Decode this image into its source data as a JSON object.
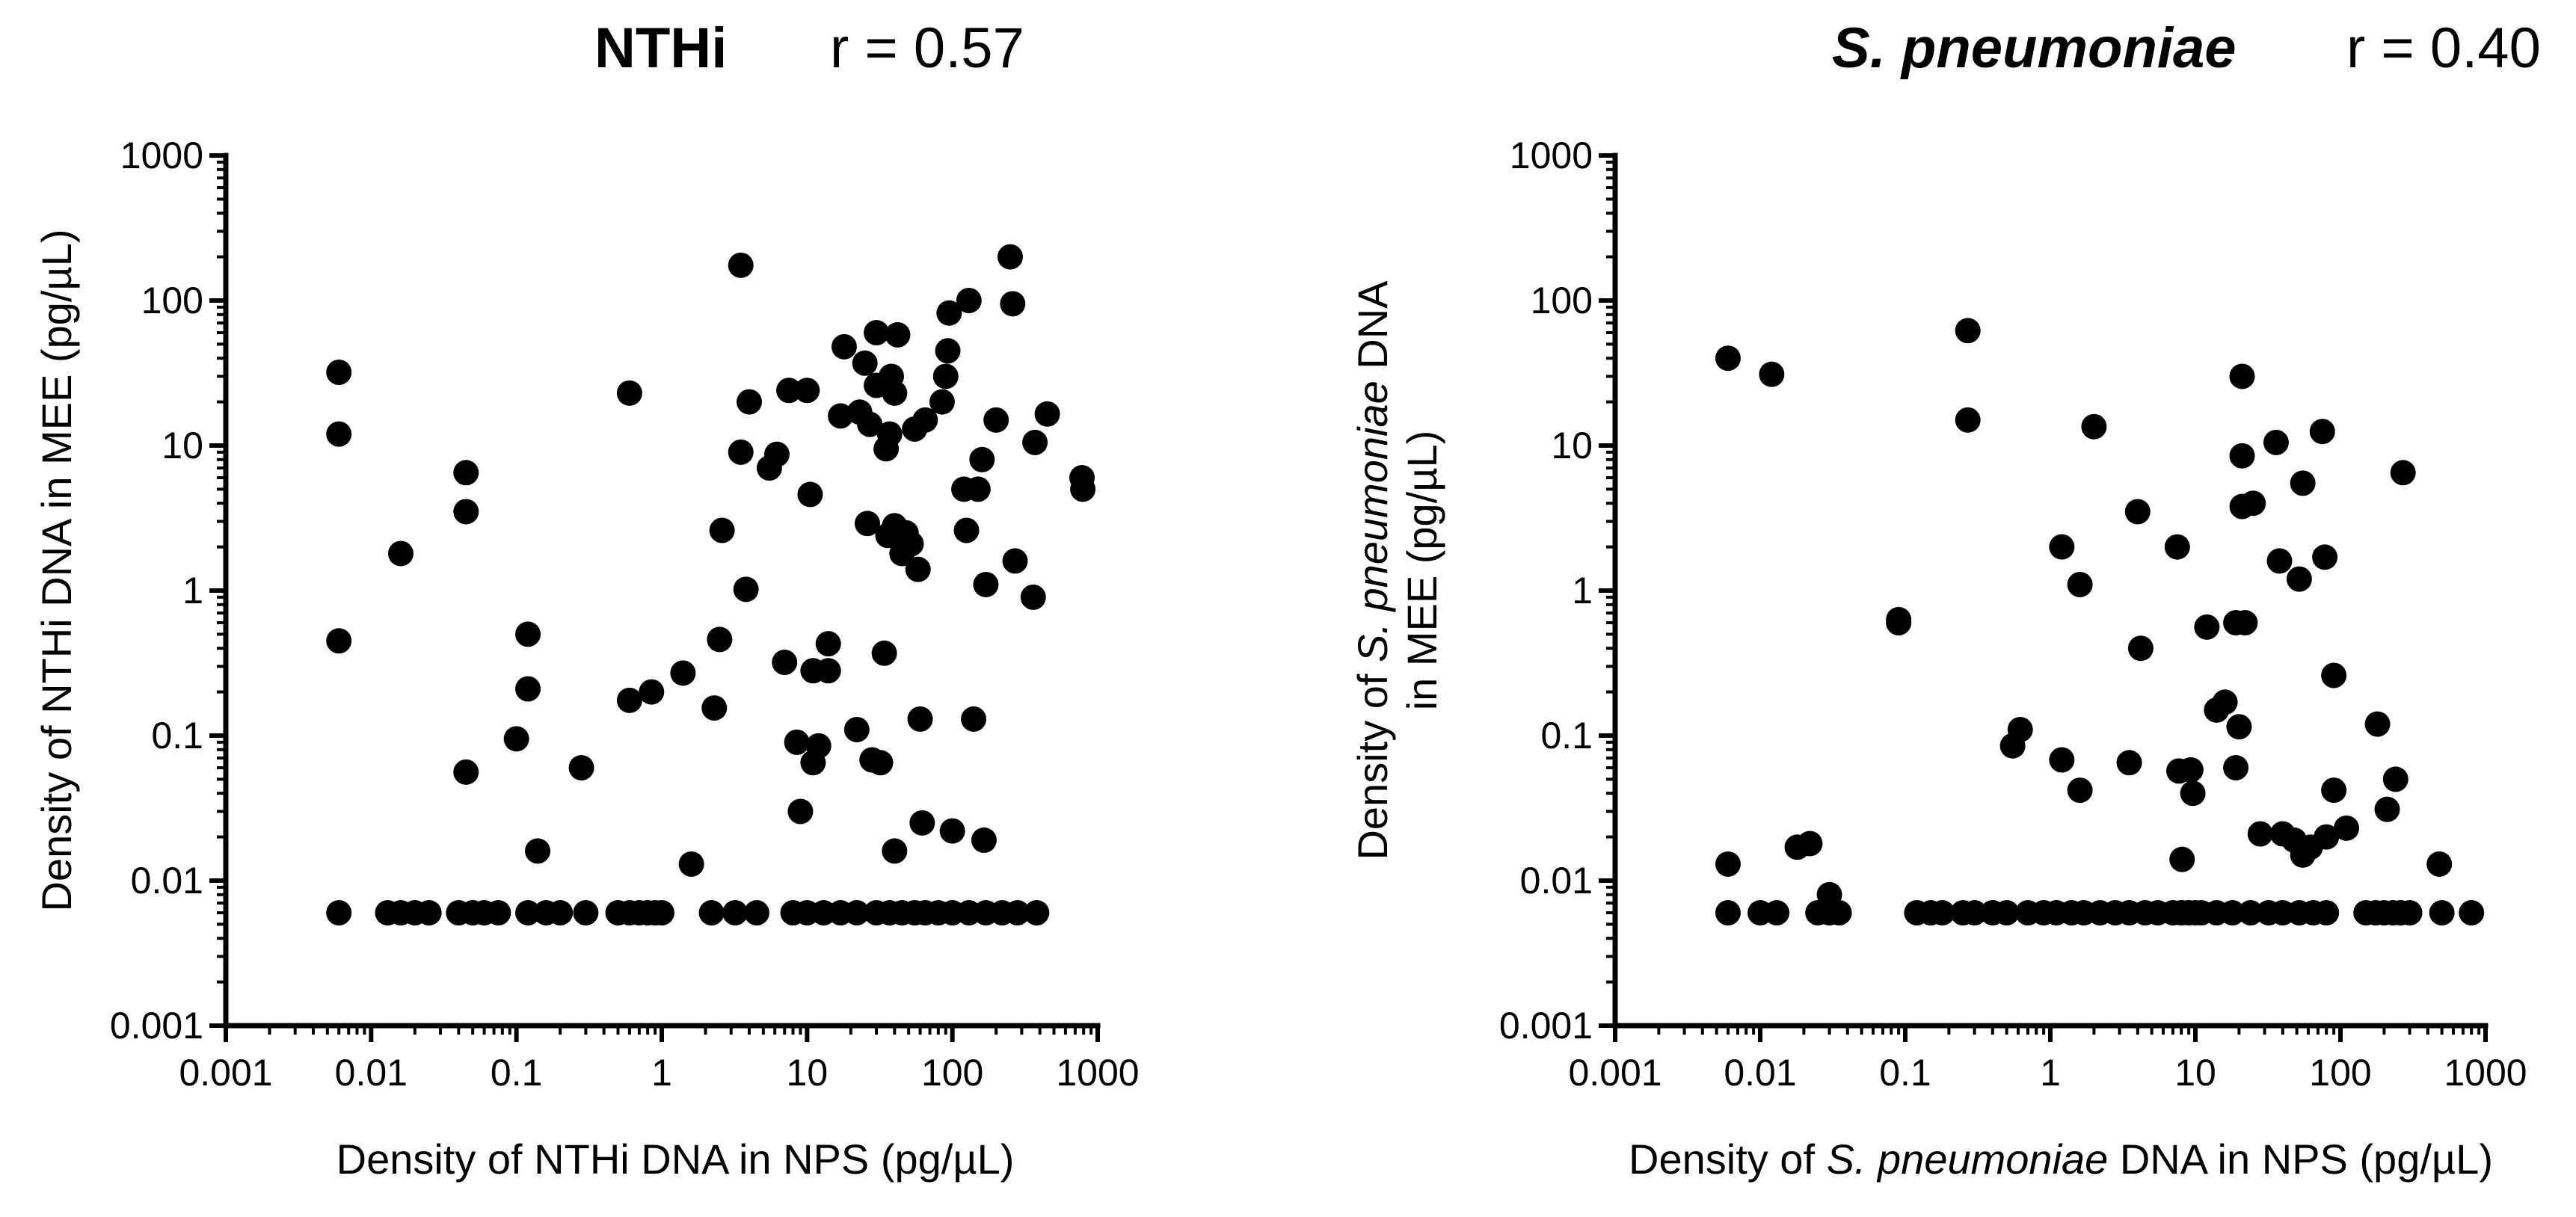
{
  "chart_data": [
    {
      "type": "scatter",
      "title_bold": "NTHi",
      "title_r": "r = 0.57",
      "xlabel": "Density of NTHi DNA in NPS (pg/µL)",
      "ylabel": "Density of NTHi DNA in MEE (pg/µL)",
      "xscale": "log",
      "yscale": "log",
      "xlim": [
        0.001,
        1000
      ],
      "ylim": [
        0.001,
        1000
      ],
      "xticks": [
        "0.001",
        "0.01",
        "0.1",
        "1",
        "10",
        "100",
        "1000"
      ],
      "yticks": [
        "0.001",
        "0.01",
        "0.1",
        "1",
        "10",
        "100",
        "1000"
      ],
      "points": [
        [
          0.006,
          32
        ],
        [
          0.006,
          12
        ],
        [
          0.006,
          0.45
        ],
        [
          0.016,
          1.8
        ],
        [
          0.045,
          6.5
        ],
        [
          0.045,
          3.5
        ],
        [
          0.045,
          0.056
        ],
        [
          0.1,
          0.095
        ],
        [
          0.12,
          0.5
        ],
        [
          0.12,
          0.21
        ],
        [
          0.14,
          0.016
        ],
        [
          0.28,
          0.06
        ],
        [
          0.6,
          23
        ],
        [
          0.6,
          0.175
        ],
        [
          0.85,
          0.2
        ],
        [
          1.4,
          0.27
        ],
        [
          1.6,
          0.013
        ],
        [
          2.3,
          0.155
        ],
        [
          2.5,
          0.46
        ],
        [
          2.6,
          2.6
        ],
        [
          3.5,
          175
        ],
        [
          3.5,
          9
        ],
        [
          3.8,
          1.02
        ],
        [
          4,
          20
        ],
        [
          5.5,
          7
        ],
        [
          6.2,
          8.7
        ],
        [
          7,
          0.32
        ],
        [
          7.5,
          24
        ],
        [
          8.5,
          0.09
        ],
        [
          9,
          0.03
        ],
        [
          10,
          24
        ],
        [
          10.5,
          4.6
        ],
        [
          11,
          0.28
        ],
        [
          11,
          0.065
        ],
        [
          12,
          0.085
        ],
        [
          14,
          0.28
        ],
        [
          14,
          0.43
        ],
        [
          17,
          16
        ],
        [
          18,
          48
        ],
        [
          22,
          0.11
        ],
        [
          23,
          17
        ],
        [
          25,
          37
        ],
        [
          26,
          2.9
        ],
        [
          27,
          14
        ],
        [
          28,
          0.068
        ],
        [
          30,
          60
        ],
        [
          30,
          26
        ],
        [
          32,
          0.065
        ],
        [
          34,
          0.37
        ],
        [
          35,
          9.5
        ],
        [
          36,
          2.4
        ],
        [
          37,
          12
        ],
        [
          38,
          30
        ],
        [
          40,
          23
        ],
        [
          40,
          2.8
        ],
        [
          40,
          0.016
        ],
        [
          42,
          58
        ],
        [
          45,
          1.8
        ],
        [
          48,
          2.5
        ],
        [
          52,
          2.1
        ],
        [
          55,
          13
        ],
        [
          58,
          1.4
        ],
        [
          60,
          0.13
        ],
        [
          62,
          0.025
        ],
        [
          65,
          15
        ],
        [
          85,
          20
        ],
        [
          90,
          30
        ],
        [
          93,
          45
        ],
        [
          95,
          82
        ],
        [
          100,
          0.022
        ],
        [
          120,
          5
        ],
        [
          125,
          2.6
        ],
        [
          130,
          100
        ],
        [
          140,
          0.13
        ],
        [
          150,
          5
        ],
        [
          160,
          8
        ],
        [
          165,
          0.019
        ],
        [
          170,
          1.1
        ],
        [
          200,
          15
        ],
        [
          250,
          200
        ],
        [
          260,
          95
        ],
        [
          270,
          1.6
        ],
        [
          360,
          0.9
        ],
        [
          370,
          10.5
        ],
        [
          450,
          16.5
        ],
        [
          780,
          6
        ],
        [
          790,
          5
        ],
        [
          0.006,
          0.006
        ],
        [
          0.013,
          0.006
        ],
        [
          0.016,
          0.006
        ],
        [
          0.02,
          0.006
        ],
        [
          0.025,
          0.006
        ],
        [
          0.04,
          0.006
        ],
        [
          0.05,
          0.006
        ],
        [
          0.06,
          0.006
        ],
        [
          0.075,
          0.006
        ],
        [
          0.12,
          0.006
        ],
        [
          0.16,
          0.006
        ],
        [
          0.2,
          0.006
        ],
        [
          0.3,
          0.006
        ],
        [
          0.5,
          0.006
        ],
        [
          0.6,
          0.006
        ],
        [
          0.7,
          0.006
        ],
        [
          0.8,
          0.006
        ],
        [
          0.9,
          0.006
        ],
        [
          1,
          0.006
        ],
        [
          2.2,
          0.006
        ],
        [
          3.2,
          0.006
        ],
        [
          4.5,
          0.006
        ],
        [
          8,
          0.006
        ],
        [
          10,
          0.006
        ],
        [
          13,
          0.006
        ],
        [
          17,
          0.006
        ],
        [
          22,
          0.006
        ],
        [
          30,
          0.006
        ],
        [
          37,
          0.006
        ],
        [
          45,
          0.006
        ],
        [
          55,
          0.006
        ],
        [
          65,
          0.006
        ],
        [
          80,
          0.006
        ],
        [
          100,
          0.006
        ],
        [
          130,
          0.006
        ],
        [
          170,
          0.006
        ],
        [
          220,
          0.006
        ],
        [
          280,
          0.006
        ],
        [
          380,
          0.006
        ]
      ]
    },
    {
      "type": "scatter",
      "title_bold": "S. pneumoniae",
      "title_r": "r = 0.40",
      "xlabel_parts": [
        "Density of ",
        "S. pneumoniae",
        " DNA in NPS (pg/µL)"
      ],
      "ylabel_line1_parts": [
        "Density of ",
        "S. pneumoniae",
        " DNA"
      ],
      "ylabel_line2": "in MEE (pg/µL)",
      "xscale": "log",
      "yscale": "log",
      "xlim": [
        0.001,
        1000
      ],
      "ylim": [
        0.001,
        1000
      ],
      "xticks": [
        "0.001",
        "0.01",
        "0.1",
        "1",
        "10",
        "100",
        "1000"
      ],
      "yticks": [
        "0.001",
        "0.01",
        "0.1",
        "1",
        "10",
        "100",
        "1000"
      ],
      "points": [
        [
          0.006,
          40
        ],
        [
          0.006,
          0.013
        ],
        [
          0.012,
          31
        ],
        [
          0.018,
          0.017
        ],
        [
          0.022,
          0.018
        ],
        [
          0.03,
          0.008
        ],
        [
          0.09,
          0.6
        ],
        [
          0.09,
          0.63
        ],
        [
          0.27,
          62
        ],
        [
          0.27,
          15
        ],
        [
          0.55,
          0.085
        ],
        [
          0.62,
          0.11
        ],
        [
          1.2,
          2
        ],
        [
          1.2,
          0.068
        ],
        [
          1.6,
          1.1
        ],
        [
          1.6,
          0.042
        ],
        [
          2,
          13.5
        ],
        [
          3.5,
          0.065
        ],
        [
          4,
          3.5
        ],
        [
          4.2,
          0.4
        ],
        [
          7.5,
          2
        ],
        [
          7.7,
          0.057
        ],
        [
          8.1,
          0.014
        ],
        [
          9.3,
          0.058
        ],
        [
          9.6,
          0.04
        ],
        [
          12,
          0.56
        ],
        [
          14,
          0.15
        ],
        [
          16,
          0.17
        ],
        [
          19,
          0.06
        ],
        [
          19,
          0.6
        ],
        [
          20,
          0.115
        ],
        [
          21,
          30
        ],
        [
          21,
          8.5
        ],
        [
          21,
          3.8
        ],
        [
          22,
          0.6
        ],
        [
          25,
          4
        ],
        [
          28,
          0.021
        ],
        [
          36,
          10.5
        ],
        [
          38,
          1.6
        ],
        [
          40,
          0.021
        ],
        [
          48,
          0.019
        ],
        [
          52,
          1.2
        ],
        [
          55,
          5.5
        ],
        [
          55,
          0.015
        ],
        [
          62,
          0.017
        ],
        [
          75,
          12.5
        ],
        [
          78,
          1.7
        ],
        [
          80,
          0.02
        ],
        [
          90,
          0.26
        ],
        [
          90,
          0.042
        ],
        [
          110,
          0.023
        ],
        [
          180,
          0.12
        ],
        [
          210,
          0.031
        ],
        [
          240,
          0.05
        ],
        [
          270,
          6.5
        ],
        [
          480,
          0.013
        ],
        [
          0.006,
          0.006
        ],
        [
          0.01,
          0.006
        ],
        [
          0.013,
          0.006
        ],
        [
          0.025,
          0.006
        ],
        [
          0.03,
          0.006
        ],
        [
          0.035,
          0.006
        ],
        [
          0.12,
          0.006
        ],
        [
          0.15,
          0.006
        ],
        [
          0.18,
          0.006
        ],
        [
          0.25,
          0.006
        ],
        [
          0.3,
          0.006
        ],
        [
          0.4,
          0.006
        ],
        [
          0.5,
          0.006
        ],
        [
          0.7,
          0.006
        ],
        [
          0.9,
          0.006
        ],
        [
          1.1,
          0.006
        ],
        [
          1.4,
          0.006
        ],
        [
          1.7,
          0.006
        ],
        [
          2.2,
          0.006
        ],
        [
          2.8,
          0.006
        ],
        [
          3.5,
          0.006
        ],
        [
          4.5,
          0.006
        ],
        [
          5.5,
          0.006
        ],
        [
          7,
          0.006
        ],
        [
          8,
          0.006
        ],
        [
          9,
          0.006
        ],
        [
          10,
          0.006
        ],
        [
          11,
          0.006
        ],
        [
          14,
          0.006
        ],
        [
          18,
          0.006
        ],
        [
          24,
          0.006
        ],
        [
          32,
          0.006
        ],
        [
          40,
          0.006
        ],
        [
          52,
          0.006
        ],
        [
          65,
          0.006
        ],
        [
          80,
          0.006
        ],
        [
          150,
          0.006
        ],
        [
          175,
          0.006
        ],
        [
          200,
          0.006
        ],
        [
          230,
          0.006
        ],
        [
          260,
          0.006
        ],
        [
          300,
          0.006
        ],
        [
          500,
          0.006
        ],
        [
          800,
          0.006
        ]
      ]
    }
  ]
}
